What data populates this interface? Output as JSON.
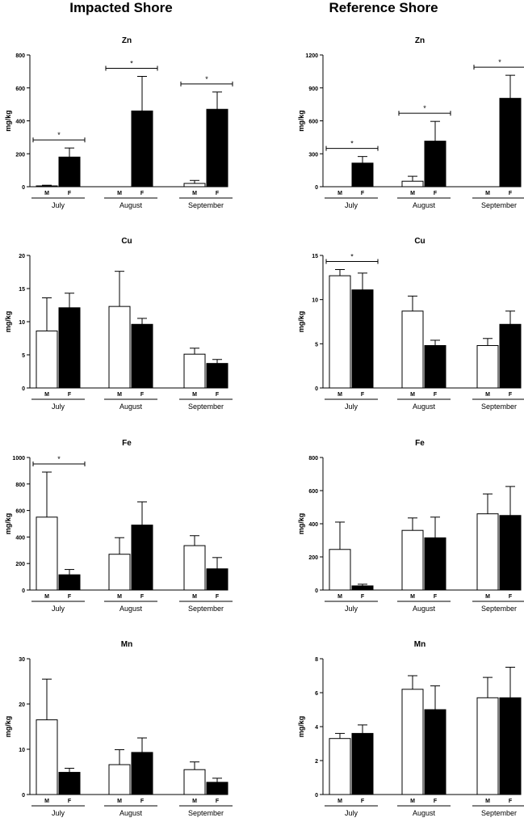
{
  "columns": [
    "Impacted Shore",
    "Reference Shore"
  ],
  "chart_data": [
    {
      "type": "bar",
      "column": "Impacted Shore",
      "title": "Zn",
      "ylabel": "mg/kg",
      "ylim": [
        0,
        800
      ],
      "yticks": [
        0,
        200,
        400,
        600,
        800
      ],
      "groups": [
        "July",
        "August",
        "September"
      ],
      "bar_labels": [
        "M",
        "F"
      ],
      "series": [
        {
          "values": [
            5,
            0,
            20
          ],
          "errors": [
            4,
            0,
            18
          ],
          "fill": "#ffffff"
        },
        {
          "values": [
            180,
            460,
            470
          ],
          "errors": [
            55,
            210,
            105
          ],
          "fill": "#000000"
        }
      ],
      "significance": [
        {
          "group": 0,
          "label": "*"
        },
        {
          "group": 1,
          "label": "*"
        },
        {
          "group": 2,
          "label": "*"
        }
      ]
    },
    {
      "type": "bar",
      "column": "Reference Shore",
      "title": "Zn",
      "ylabel": "mg/kg",
      "ylim": [
        0,
        1200
      ],
      "yticks": [
        0,
        300,
        600,
        900,
        1200
      ],
      "groups": [
        "July",
        "August",
        "September"
      ],
      "bar_labels": [
        "M",
        "F"
      ],
      "series": [
        {
          "values": [
            0,
            50,
            0
          ],
          "errors": [
            0,
            45,
            0
          ],
          "fill": "#ffffff"
        },
        {
          "values": [
            215,
            415,
            805
          ],
          "errors": [
            60,
            180,
            210
          ],
          "fill": "#000000"
        }
      ],
      "significance": [
        {
          "group": 0,
          "label": "*"
        },
        {
          "group": 1,
          "label": "*"
        },
        {
          "group": 2,
          "label": "*"
        }
      ]
    },
    {
      "type": "bar",
      "column": "Impacted Shore",
      "title": "Cu",
      "ylabel": "mg/kg",
      "ylim": [
        0,
        20
      ],
      "yticks": [
        0,
        5,
        10,
        15,
        20
      ],
      "groups": [
        "July",
        "August",
        "September"
      ],
      "bar_labels": [
        "M",
        "F"
      ],
      "series": [
        {
          "values": [
            8.6,
            12.3,
            5.1
          ],
          "errors": [
            5.0,
            5.3,
            0.9
          ],
          "fill": "#ffffff"
        },
        {
          "values": [
            12.1,
            9.6,
            3.7
          ],
          "errors": [
            2.2,
            0.9,
            0.6
          ],
          "fill": "#000000"
        }
      ],
      "significance": []
    },
    {
      "type": "bar",
      "column": "Reference Shore",
      "title": "Cu",
      "ylabel": "mg/kg",
      "ylim": [
        0,
        15
      ],
      "yticks": [
        0,
        5,
        10,
        15
      ],
      "groups": [
        "July",
        "August",
        "September"
      ],
      "bar_labels": [
        "M",
        "F"
      ],
      "series": [
        {
          "values": [
            12.7,
            8.7,
            4.8
          ],
          "errors": [
            0.7,
            1.7,
            0.8
          ],
          "fill": "#ffffff"
        },
        {
          "values": [
            11.1,
            4.8,
            7.2
          ],
          "errors": [
            1.9,
            0.6,
            1.5
          ],
          "fill": "#000000"
        }
      ],
      "significance": [
        {
          "group": 0,
          "label": "*"
        }
      ]
    },
    {
      "type": "bar",
      "column": "Impacted Shore",
      "title": "Fe",
      "ylabel": "mg/kg",
      "ylim": [
        0,
        1000
      ],
      "yticks": [
        0,
        200,
        400,
        600,
        800,
        1000
      ],
      "groups": [
        "July",
        "August",
        "September"
      ],
      "bar_labels": [
        "M",
        "F"
      ],
      "series": [
        {
          "values": [
            550,
            270,
            335
          ],
          "errors": [
            340,
            125,
            75
          ],
          "fill": "#ffffff"
        },
        {
          "values": [
            115,
            490,
            160
          ],
          "errors": [
            40,
            175,
            85
          ],
          "fill": "#000000"
        }
      ],
      "significance": [
        {
          "group": 0,
          "label": "*"
        }
      ]
    },
    {
      "type": "bar",
      "column": "Reference Shore",
      "title": "Fe",
      "ylabel": "mg/kg",
      "ylim": [
        0,
        800
      ],
      "yticks": [
        0,
        200,
        400,
        600,
        800
      ],
      "groups": [
        "July",
        "August",
        "September"
      ],
      "bar_labels": [
        "M",
        "F"
      ],
      "series": [
        {
          "values": [
            245,
            360,
            460
          ],
          "errors": [
            165,
            75,
            120
          ],
          "fill": "#ffffff"
        },
        {
          "values": [
            25,
            315,
            450
          ],
          "errors": [
            10,
            125,
            175
          ],
          "fill": "#000000"
        }
      ],
      "significance": []
    },
    {
      "type": "bar",
      "column": "Impacted Shore",
      "title": "Mn",
      "ylabel": "mg/kg",
      "ylim": [
        0,
        30
      ],
      "yticks": [
        0,
        10,
        20,
        30
      ],
      "groups": [
        "July",
        "August",
        "September"
      ],
      "bar_labels": [
        "M",
        "F"
      ],
      "series": [
        {
          "values": [
            16.5,
            6.6,
            5.5
          ],
          "errors": [
            9.0,
            3.3,
            1.7
          ],
          "fill": "#ffffff"
        },
        {
          "values": [
            4.9,
            9.3,
            2.7
          ],
          "errors": [
            0.9,
            3.2,
            0.9
          ],
          "fill": "#000000"
        }
      ],
      "significance": []
    },
    {
      "type": "bar",
      "column": "Reference Shore",
      "title": "Mn",
      "ylabel": "mg/kg",
      "ylim": [
        0,
        8
      ],
      "yticks": [
        0,
        2,
        4,
        6,
        8
      ],
      "groups": [
        "July",
        "August",
        "September"
      ],
      "bar_labels": [
        "M",
        "F"
      ],
      "series": [
        {
          "values": [
            3.3,
            6.2,
            5.7
          ],
          "errors": [
            0.3,
            0.8,
            1.2
          ],
          "fill": "#ffffff"
        },
        {
          "values": [
            3.6,
            5.0,
            5.7
          ],
          "errors": [
            0.5,
            1.4,
            1.8
          ],
          "fill": "#000000"
        }
      ],
      "significance": []
    }
  ]
}
